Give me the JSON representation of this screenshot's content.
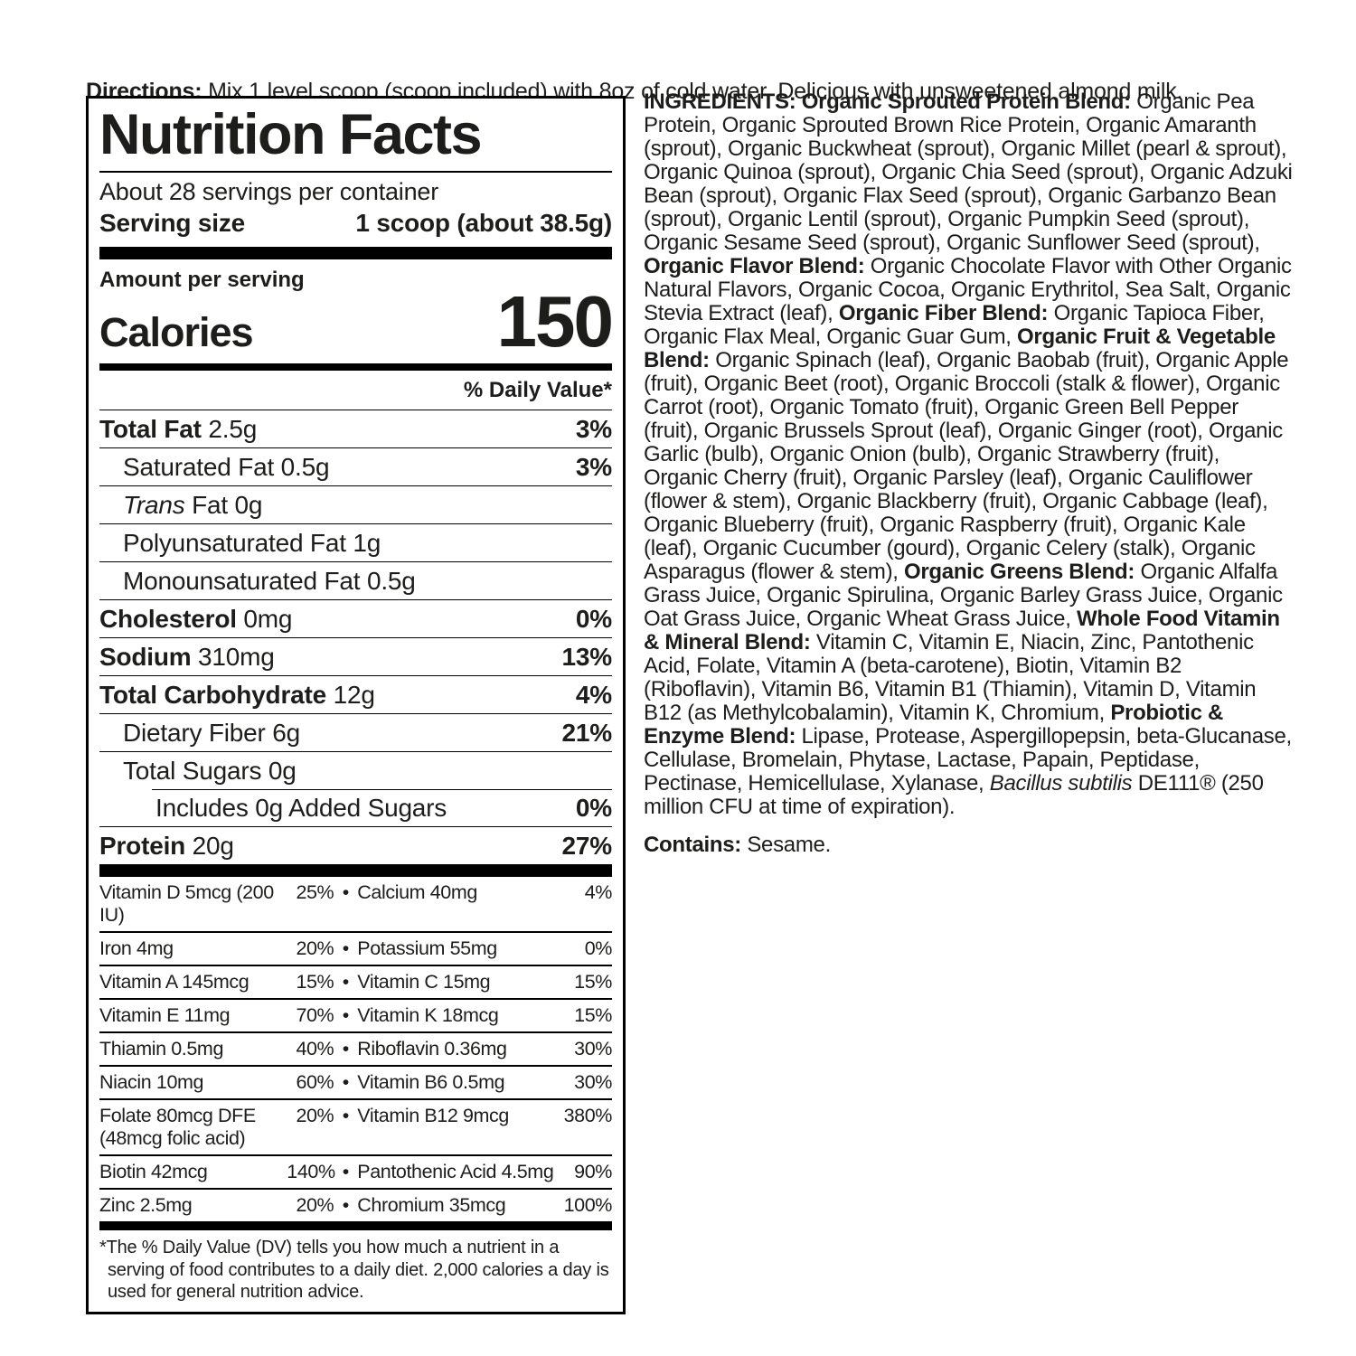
{
  "colors": {
    "background": "#ffffff",
    "text": "#1d1d1b",
    "rule": "#000000"
  },
  "directions": {
    "label": "Directions:",
    "text": " Mix 1 level scoop (scoop included) with 8oz of cold water. Delicious with unsweetened almond milk."
  },
  "nutrition_label": {
    "title": "Nutrition Facts",
    "servings_per_container": "About 28 servings per container",
    "serving_size_label": "Serving size",
    "serving_size_value": "1 scoop (about 38.5g)",
    "amount_per_serving": "Amount per serving",
    "calories_label": "Calories",
    "calories_value": "150",
    "daily_value_header": "% Daily Value*",
    "bullet": "•",
    "nutrient_rows": [
      {
        "bold": "Total Fat",
        "reg": " 2.5g",
        "pct": "3%",
        "indent": 0
      },
      {
        "reg": "Saturated Fat 0.5g",
        "pct": "3%",
        "indent": 1
      },
      {
        "italic": "Trans",
        "reg": " Fat 0g",
        "pct": "",
        "indent": 1
      },
      {
        "reg": "Polyunsaturated Fat 1g",
        "pct": "",
        "indent": 1
      },
      {
        "reg": "Monounsaturated Fat 0.5g",
        "pct": "",
        "indent": 1
      },
      {
        "bold": "Cholesterol",
        "reg": " 0mg",
        "pct": "0%",
        "indent": 0
      },
      {
        "bold": "Sodium",
        "reg": " 310mg",
        "pct": "13%",
        "indent": 0
      },
      {
        "bold": "Total Carbohydrate",
        "reg": " 12g",
        "pct": "4%",
        "indent": 0
      },
      {
        "reg": "Dietary Fiber 6g",
        "pct": "21%",
        "indent": 1
      },
      {
        "reg": "Total Sugars 0g",
        "pct": "",
        "indent": 1
      },
      {
        "reg": "Includes 0g Added Sugars",
        "pct": "0%",
        "indent": 2,
        "inset": true
      },
      {
        "bold": "Protein",
        "reg": " 20g",
        "pct": "27%",
        "indent": 0
      }
    ],
    "micronutrient_rows": [
      {
        "left_name": "Vitamin D 5mcg (200 IU)",
        "left_pct": "25%",
        "right_name": "Calcium 40mg",
        "right_pct": "4%"
      },
      {
        "left_name": "Iron 4mg",
        "left_pct": "20%",
        "right_name": "Potassium 55mg",
        "right_pct": "0%"
      },
      {
        "left_name": "Vitamin A 145mcg",
        "left_pct": "15%",
        "right_name": "Vitamin C 15mg",
        "right_pct": "15%"
      },
      {
        "left_name": "Vitamin E 11mg",
        "left_pct": "70%",
        "right_name": "Vitamin K 18mcg",
        "right_pct": "15%"
      },
      {
        "left_name": "Thiamin 0.5mg",
        "left_pct": "40%",
        "right_name": "Riboflavin 0.36mg",
        "right_pct": "30%"
      },
      {
        "left_name": "Niacin 10mg",
        "left_pct": "60%",
        "right_name": "Vitamin B6 0.5mg",
        "right_pct": "30%"
      },
      {
        "left_name": "Folate 80mcg DFE",
        "left_name2": "(48mcg folic acid)",
        "left_pct": "20%",
        "right_name": "Vitamin B12 9mcg",
        "right_pct": "380%"
      },
      {
        "left_name": "Biotin 42mcg",
        "left_pct": "140%",
        "right_name": "Pantothenic Acid 4.5mg",
        "right_pct": "90%"
      },
      {
        "left_name": "Zinc 2.5mg",
        "left_pct": "20%",
        "right_name": "Chromium 35mcg",
        "right_pct": "100%"
      }
    ],
    "footnote": "*The % Daily Value (DV) tells you how much a nutrient in a serving of food contributes to a daily diet. 2,000 calories a day is used for general nutrition advice."
  },
  "ingredients": {
    "segments": [
      {
        "b": true,
        "t": "INGREDIENTS: Organic Sprouted Protein Blend:"
      },
      {
        "t": " Organic Pea Protein, Organic Sprouted Brown Rice Protein, Organic Amaranth (sprout), Organic Buckwheat (sprout), Organic Millet (pearl & sprout), Organic Quinoa (sprout), Organic Chia Seed (sprout), Organic Adzuki Bean (sprout), Organic Flax Seed (sprout), Organic Garbanzo Bean (sprout), Organic Lentil (sprout), Organic Pumpkin Seed (sprout), Organic Sesame Seed (sprout), Organic Sunflower Seed (sprout), "
      },
      {
        "b": true,
        "t": "Organic Flavor Blend:"
      },
      {
        "t": " Organic Chocolate Flavor with Other Organic Natural Flavors, Organic Cocoa, Organic Erythritol, Sea Salt, Organic Stevia Extract (leaf), "
      },
      {
        "b": true,
        "t": "Organic Fiber Blend:"
      },
      {
        "t": " Organic Tapioca Fiber, Organic Flax Meal, Organic Guar Gum, "
      },
      {
        "b": true,
        "t": "Organic Fruit & Vegetable Blend:"
      },
      {
        "t": " Organic Spinach (leaf), Organic Baobab (fruit), Organic Apple (fruit), Organic Beet (root), Organic Broccoli (stalk & flower), Organic Carrot (root), Organic Tomato (fruit), Organic Green Bell Pepper (fruit), Organic Brussels Sprout (leaf), Organic Ginger (root), Organic Garlic (bulb), Organic Onion (bulb), Organic Strawberry (fruit), Organic Cherry (fruit), Organic Parsley (leaf), Organic Cauliflower (flower & stem), Organic Blackberry (fruit), Organic Cabbage (leaf), Organic Blueberry (fruit), Organic Raspberry (fruit), Organic Kale (leaf), Organic Cucumber (gourd), Organic Celery (stalk), Organic Asparagus (flower & stem), "
      },
      {
        "b": true,
        "t": "Organic Greens Blend:"
      },
      {
        "t": " Organic Alfalfa Grass Juice, Organic Spirulina, Organic Barley Grass Juice, Organic Oat Grass Juice, Organic Wheat Grass Juice, "
      },
      {
        "b": true,
        "t": "Whole Food Vitamin & Mineral Blend:"
      },
      {
        "t": " Vitamin C, Vitamin E, Niacin, Zinc, Pantothenic Acid, Folate, Vitamin A (beta-carotene), Biotin, Vitamin B2 (Riboflavin), Vitamin B6, Vitamin B1 (Thiamin), Vitamin D, Vitamin B12 (as Methylcobalamin), Vitamin K, Chromium, "
      },
      {
        "b": true,
        "t": "Probiotic & Enzyme Blend:"
      },
      {
        "t": " Lipase, Protease, Aspergillopepsin, beta-Glucanase, Cellulase, Bromelain, Phytase, Lactase, Papain, Peptidase, Pectinase, Hemicellulase, Xylanase, "
      },
      {
        "i": true,
        "t": "Bacillus subtilis"
      },
      {
        "t": " DE111® (250 million CFU at time of expiration)."
      }
    ],
    "contains_label": "Contains:",
    "contains_text": " Sesame."
  }
}
